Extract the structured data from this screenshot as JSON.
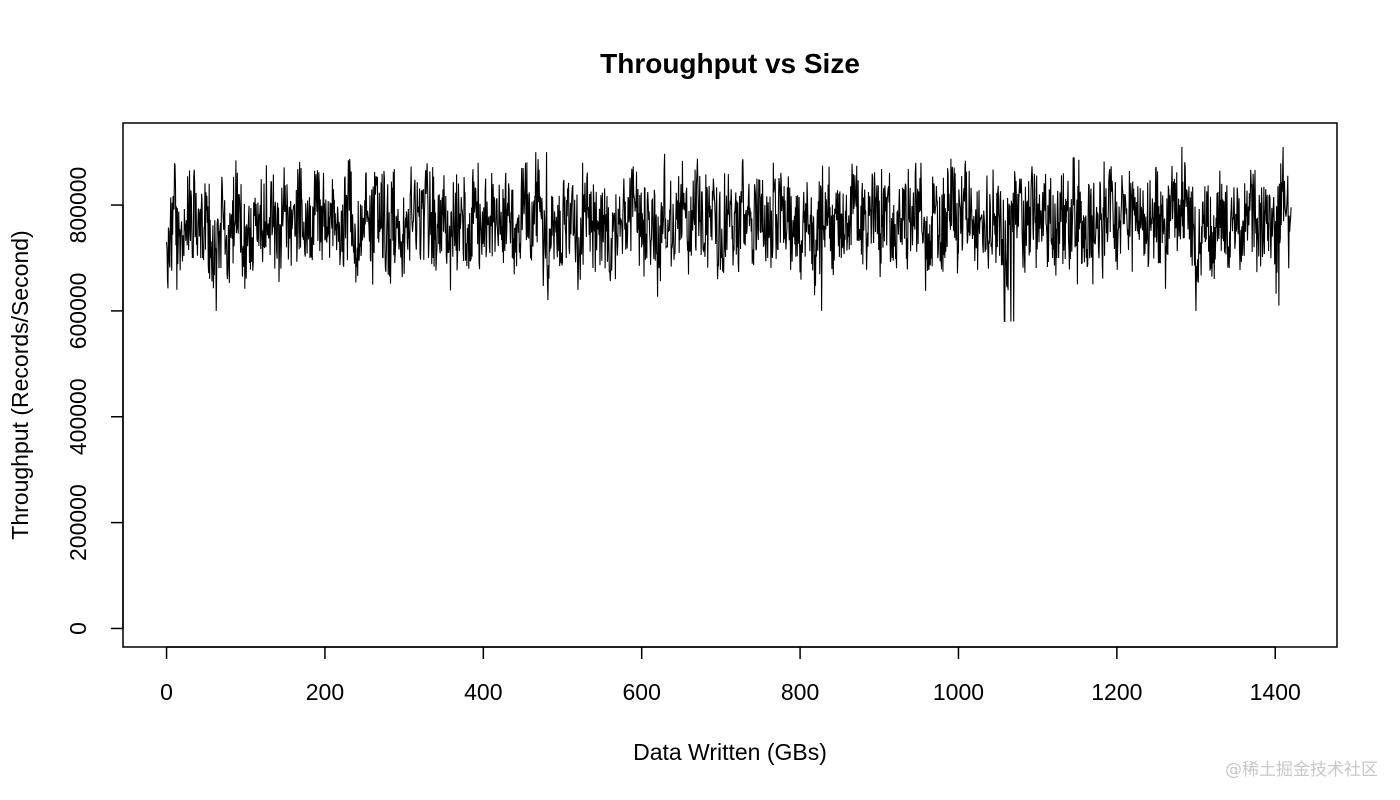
{
  "chart_data": {
    "type": "line",
    "title": "Throughput vs Size",
    "xlabel": "Data Written (GBs)",
    "ylabel": "Throughput (Records/Second)",
    "xlim": [
      -55,
      1478
    ],
    "ylim": [
      -35000,
      955000
    ],
    "x_ticks": [
      0,
      200,
      400,
      600,
      800,
      1000,
      1200,
      1400
    ],
    "y_ticks": [
      0,
      200000,
      400000,
      600000,
      800000
    ],
    "grid": false,
    "legend": "none",
    "line_color": "#000000",
    "series": [
      {
        "x": [
          0,
          10,
          20,
          30,
          40,
          50,
          60,
          70,
          80,
          90,
          100,
          110,
          120,
          130,
          140,
          150,
          160,
          170,
          180,
          190,
          200,
          210,
          220,
          230,
          240,
          250,
          260,
          270,
          280,
          290,
          300,
          310,
          320,
          330,
          340,
          350,
          360,
          370,
          380,
          390,
          400,
          410,
          420,
          430,
          440,
          450,
          460,
          470,
          480,
          490,
          500,
          510,
          520,
          530,
          540,
          550,
          560,
          570,
          580,
          590,
          600,
          610,
          620,
          630,
          640,
          650,
          660,
          670,
          680,
          690,
          700,
          710,
          720,
          730,
          740,
          750,
          760,
          770,
          780,
          790,
          800,
          810,
          820,
          830,
          840,
          850,
          860,
          870,
          880,
          890,
          900,
          910,
          920,
          930,
          940,
          950,
          960,
          970,
          980,
          990,
          1000,
          1010,
          1020,
          1030,
          1040,
          1050,
          1060,
          1070,
          1080,
          1090,
          1100,
          1110,
          1120,
          1130,
          1140,
          1150,
          1160,
          1170,
          1180,
          1190,
          1200,
          1210,
          1220,
          1230,
          1240,
          1250,
          1260,
          1270,
          1280,
          1290,
          1300,
          1310,
          1320,
          1330,
          1340,
          1350,
          1360,
          1370,
          1380,
          1390,
          1400,
          1410,
          1420
        ],
        "y": [
          570000,
          840000,
          640000,
          860000,
          700000,
          830000,
          600000,
          810000,
          660000,
          900000,
          580000,
          840000,
          720000,
          880000,
          680000,
          820000,
          740000,
          870000,
          700000,
          910000,
          760000,
          830000,
          690000,
          850000,
          580000,
          800000,
          720000,
          870000,
          700000,
          820000,
          680000,
          860000,
          730000,
          890000,
          700000,
          810000,
          660000,
          840000,
          720000,
          880000,
          690000,
          850000,
          740000,
          830000,
          700000,
          870000,
          760000,
          900000,
          580000,
          860000,
          700000,
          820000,
          600000,
          880000,
          720000,
          830000,
          660000,
          870000,
          740000,
          900000,
          700000,
          850000,
          640000,
          890000,
          720000,
          820000,
          700000,
          880000,
          760000,
          860000,
          640000,
          830000,
          720000,
          870000,
          690000,
          850000,
          700000,
          880000,
          740000,
          820000,
          650000,
          860000,
          600000,
          890000,
          720000,
          830000,
          700000,
          870000,
          680000,
          850000,
          740000,
          860000,
          590000,
          830000,
          720000,
          880000,
          600000,
          820000,
          700000,
          860000,
          740000,
          890000,
          720000,
          840000,
          690000,
          870000,
          580000,
          850000,
          710000,
          880000,
          740000,
          830000,
          700000,
          860000,
          720000,
          890000,
          650000,
          840000,
          730000,
          920000,
          700000,
          870000,
          740000,
          850000,
          720000,
          880000,
          690000,
          860000,
          720000,
          910000,
          600000,
          830000,
          580000,
          870000,
          710000,
          850000,
          690000,
          860000,
          720000,
          840000,
          610000,
          910000,
          740000
        ]
      }
    ]
  },
  "watermark": "@稀土掘金技术社区"
}
